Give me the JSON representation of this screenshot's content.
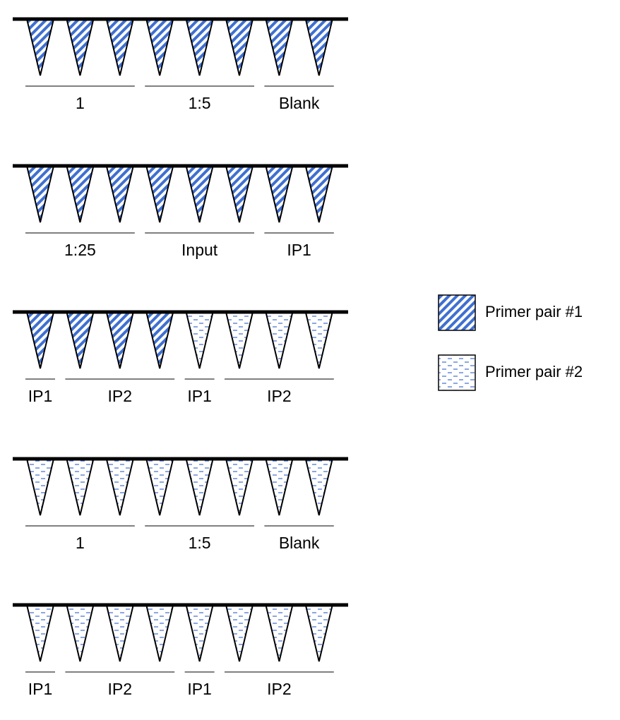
{
  "legend": [
    {
      "pattern": "diagonal",
      "label": "Primer pair #1"
    },
    {
      "pattern": "dashed",
      "label": "Primer pair #2"
    }
  ],
  "colors": {
    "pattern": "#3f6fd0",
    "outline": "#000000",
    "background": "#ffffff"
  },
  "strips": [
    {
      "wells": [
        "diagonal",
        "diagonal",
        "diagonal",
        "diagonal",
        "diagonal",
        "diagonal",
        "diagonal",
        "diagonal"
      ],
      "groups": [
        {
          "label": "1",
          "from": 0,
          "to": 2
        },
        {
          "label": "1:5",
          "from": 3,
          "to": 5
        },
        {
          "label": "Blank",
          "from": 6,
          "to": 7
        }
      ]
    },
    {
      "wells": [
        "diagonal",
        "diagonal",
        "diagonal",
        "diagonal",
        "diagonal",
        "diagonal",
        "diagonal",
        "diagonal"
      ],
      "groups": [
        {
          "label": "1:25",
          "from": 0,
          "to": 2
        },
        {
          "label": "Input",
          "from": 3,
          "to": 5
        },
        {
          "label": "IP1",
          "from": 6,
          "to": 7
        }
      ]
    },
    {
      "wells": [
        "diagonal",
        "diagonal",
        "diagonal",
        "diagonal",
        "dashed",
        "dashed",
        "dashed",
        "dashed"
      ],
      "groups": [
        {
          "label": "IP1",
          "from": 0,
          "to": 0
        },
        {
          "label": "IP2",
          "from": 1,
          "to": 3
        },
        {
          "label": "IP1",
          "from": 4,
          "to": 4
        },
        {
          "label": "IP2",
          "from": 5,
          "to": 7
        }
      ]
    },
    {
      "wells": [
        "dashed",
        "dashed",
        "dashed",
        "dashed",
        "dashed",
        "dashed",
        "dashed",
        "dashed"
      ],
      "groups": [
        {
          "label": "1",
          "from": 0,
          "to": 2
        },
        {
          "label": "1:5",
          "from": 3,
          "to": 5
        },
        {
          "label": "Blank",
          "from": 6,
          "to": 7
        }
      ]
    },
    {
      "wells": [
        "dashed",
        "dashed",
        "dashed",
        "dashed",
        "dashed",
        "dashed",
        "dashed",
        "dashed"
      ],
      "groups": [
        {
          "label": "IP1",
          "from": 0,
          "to": 0
        },
        {
          "label": "IP2",
          "from": 1,
          "to": 3
        },
        {
          "label": "IP1",
          "from": 4,
          "to": 4
        },
        {
          "label": "IP2",
          "from": 5,
          "to": 7
        }
      ]
    }
  ]
}
